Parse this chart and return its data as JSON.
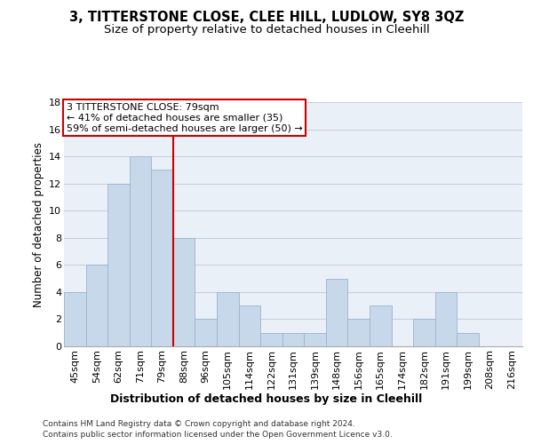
{
  "title": "3, TITTERSTONE CLOSE, CLEE HILL, LUDLOW, SY8 3QZ",
  "subtitle": "Size of property relative to detached houses in Cleehill",
  "xlabel": "Distribution of detached houses by size in Cleehill",
  "ylabel": "Number of detached properties",
  "categories": [
    "45sqm",
    "54sqm",
    "62sqm",
    "71sqm",
    "79sqm",
    "88sqm",
    "96sqm",
    "105sqm",
    "114sqm",
    "122sqm",
    "131sqm",
    "139sqm",
    "148sqm",
    "156sqm",
    "165sqm",
    "174sqm",
    "182sqm",
    "191sqm",
    "199sqm",
    "208sqm",
    "216sqm"
  ],
  "values": [
    4,
    6,
    12,
    14,
    13,
    8,
    2,
    4,
    3,
    1,
    1,
    1,
    5,
    2,
    3,
    0,
    2,
    4,
    1,
    0,
    0
  ],
  "bar_color": "#c8d8eb",
  "bar_edge_color": "#9ab4cc",
  "highlight_index": 4,
  "highlight_line_color": "#cc0000",
  "annotation_text": "3 TITTERSTONE CLOSE: 79sqm\n← 41% of detached houses are smaller (35)\n59% of semi-detached houses are larger (50) →",
  "annotation_box_color": "#ffffff",
  "annotation_box_edge_color": "#cc0000",
  "ylim": [
    0,
    18
  ],
  "yticks": [
    0,
    2,
    4,
    6,
    8,
    10,
    12,
    14,
    16,
    18
  ],
  "grid_color": "#c8d0dc",
  "bg_color": "#eaf0f8",
  "footer_line1": "Contains HM Land Registry data © Crown copyright and database right 2024.",
  "footer_line2": "Contains public sector information licensed under the Open Government Licence v3.0.",
  "title_fontsize": 10.5,
  "subtitle_fontsize": 9.5,
  "xlabel_fontsize": 9,
  "ylabel_fontsize": 8.5,
  "tick_fontsize": 8,
  "annotation_fontsize": 8,
  "footer_fontsize": 6.5
}
